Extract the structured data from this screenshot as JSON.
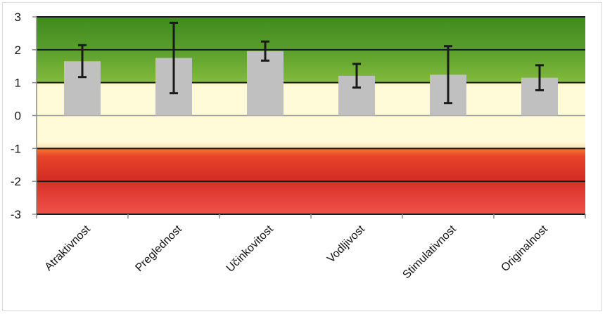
{
  "chart_data": {
    "type": "bar",
    "title": "",
    "xlabel": "",
    "ylabel": "",
    "ylim": [
      -3,
      3
    ],
    "yticks": [
      "3",
      "2",
      "1",
      "0",
      "-1",
      "-2",
      "-3"
    ],
    "categories": [
      "Atraktivnost",
      "Preglednost",
      "Učinkovitost",
      "Vodljivost",
      "Stimulativnost",
      "Originalnost"
    ],
    "values": [
      1.65,
      1.75,
      1.96,
      1.21,
      1.24,
      1.15
    ],
    "error_low": [
      1.17,
      0.68,
      1.67,
      0.85,
      0.38,
      0.77
    ],
    "error_high": [
      2.14,
      2.82,
      2.25,
      1.57,
      2.11,
      1.53
    ],
    "bar_color": "#c0c0c0",
    "error_bar_color": "#1a1a1a",
    "bands": [
      {
        "from": 1,
        "to": 3,
        "color": "#5c9e2c"
      },
      {
        "from": -1,
        "to": 1,
        "color": "#fffbd6"
      },
      {
        "from": -3,
        "to": -1,
        "color": "#e23a2c"
      }
    ],
    "grid": true,
    "legend": "none"
  }
}
